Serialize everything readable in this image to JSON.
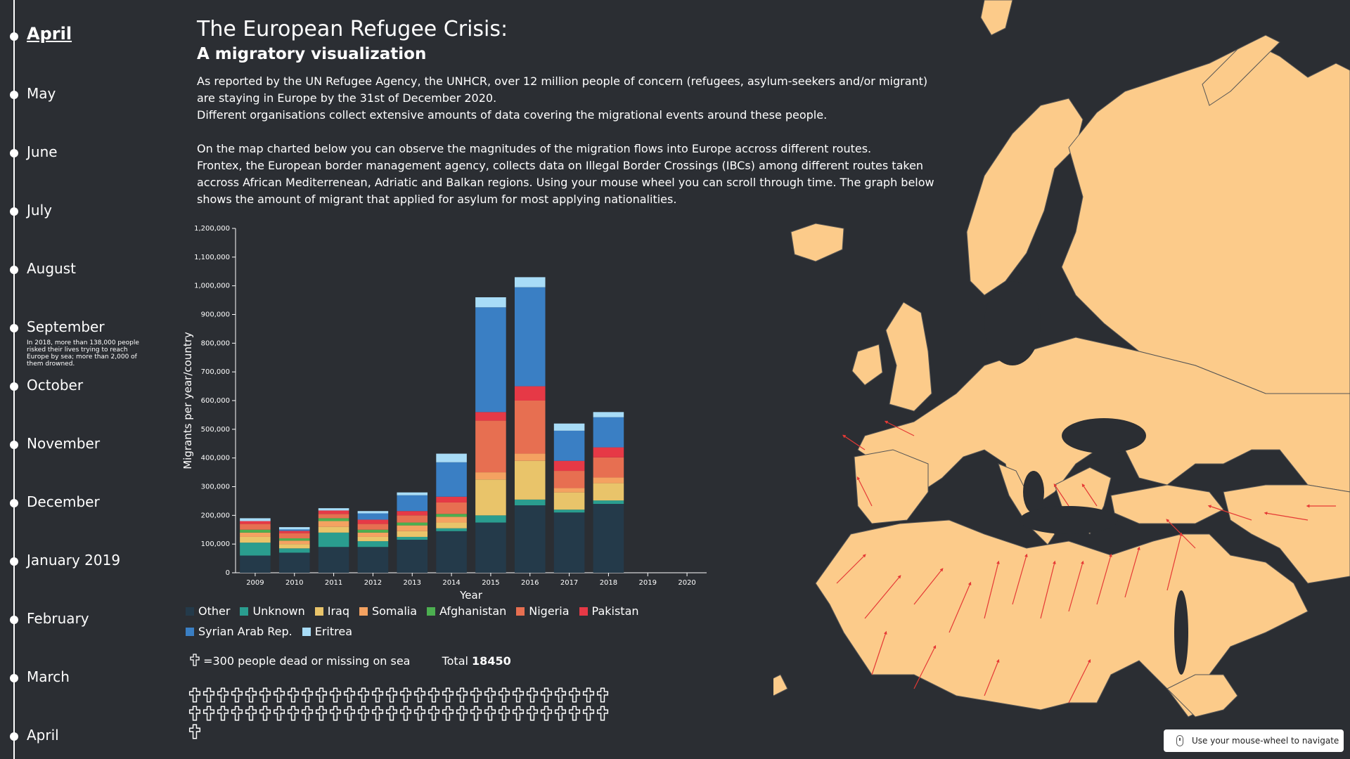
{
  "timeline": {
    "items": [
      {
        "label": "April",
        "active": true,
        "note": ""
      },
      {
        "label": "May",
        "active": false,
        "note": ""
      },
      {
        "label": "June",
        "active": false,
        "note": ""
      },
      {
        "label": "July",
        "active": false,
        "note": ""
      },
      {
        "label": "August",
        "active": false,
        "note": ""
      },
      {
        "label": "September",
        "active": false,
        "note": "In 2018, more than 138,000 people risked their lives trying to reach Europe by sea; more than 2,000 of them drowned."
      },
      {
        "label": "October",
        "active": false,
        "note": ""
      },
      {
        "label": "November",
        "active": false,
        "note": ""
      },
      {
        "label": "December",
        "active": false,
        "note": ""
      },
      {
        "label": "January 2019",
        "active": false,
        "note": ""
      },
      {
        "label": "February",
        "active": false,
        "note": ""
      },
      {
        "label": "March",
        "active": false,
        "note": ""
      },
      {
        "label": "April",
        "active": false,
        "note": ""
      }
    ]
  },
  "header": {
    "title": "The European Refugee Crisis:",
    "subtitle": "A migratory visualization",
    "p1": "As reported by the UN Refugee Agency, the UNHCR, over 12 million people of concern (refugees, asylum-seekers and/or migrant) are staying in Europe by the 31st of December 2020.",
    "p2": "Different organisations collect extensive amounts of data covering the migrational events around these people.",
    "p3": "On the map charted below you can observe the magnitudes of the migration flows into Europe accross different routes.",
    "p4": "Frontex, the European border management agency, collects data on Illegal Border Crossings (IBCs) among different routes taken accross African Mediterrenean, Adriatic and Balkan regions. Using your mouse wheel you can scroll through time. The graph below shows the amount of migrant that applied for asylum for most applying nationalities."
  },
  "chart_data": {
    "type": "bar",
    "stacked": true,
    "xlabel": "Year",
    "ylabel": "Migrants per year/country",
    "ylim": [
      0,
      1200000
    ],
    "yticks": [
      "0",
      "100,000",
      "200,000",
      "300,000",
      "400,000",
      "500,000",
      "600,000",
      "700,000",
      "800,000",
      "900,000",
      "1,000,000",
      "1,100,000",
      "1,200,000"
    ],
    "categories": [
      "2009",
      "2010",
      "2011",
      "2012",
      "2013",
      "2014",
      "2015",
      "2016",
      "2017",
      "2018",
      "2019",
      "2020"
    ],
    "series": [
      {
        "name": "Other",
        "color": "#243a4a",
        "values": [
          60000,
          70000,
          90000,
          90000,
          115000,
          145000,
          175000,
          235000,
          210000,
          240000,
          0,
          0
        ]
      },
      {
        "name": "Unknown",
        "color": "#2a9d8f",
        "values": [
          45000,
          15000,
          50000,
          20000,
          10000,
          10000,
          25000,
          20000,
          10000,
          12000,
          0,
          0
        ]
      },
      {
        "name": "Iraq",
        "color": "#e9c46a",
        "values": [
          20000,
          15000,
          20000,
          15000,
          20000,
          20000,
          125000,
          135000,
          60000,
          60000,
          0,
          0
        ]
      },
      {
        "name": "Somalia",
        "color": "#f4a261",
        "values": [
          15000,
          12000,
          20000,
          15000,
          20000,
          20000,
          25000,
          25000,
          15000,
          20000,
          0,
          0
        ]
      },
      {
        "name": "Afghanistan",
        "color": "#4caf50",
        "values": [
          10000,
          8000,
          10000,
          10000,
          10000,
          10000,
          0,
          0,
          0,
          0,
          0,
          0
        ]
      },
      {
        "name": "Nigeria",
        "color": "#e76f51",
        "values": [
          20000,
          18000,
          15000,
          20000,
          25000,
          40000,
          180000,
          185000,
          60000,
          70000,
          0,
          0
        ]
      },
      {
        "name": "Pakistan",
        "color": "#e63946",
        "values": [
          10000,
          8000,
          12000,
          15000,
          15000,
          20000,
          30000,
          50000,
          35000,
          35000,
          0,
          0
        ]
      },
      {
        "name": "Syrian Arab Rep.",
        "color": "#3a7fc4",
        "values": [
          0,
          5000,
          0,
          22000,
          55000,
          120000,
          365000,
          345000,
          105000,
          105000,
          0,
          0
        ]
      },
      {
        "name": "Eritrea",
        "color": "#a8dcf7",
        "values": [
          10000,
          8000,
          8000,
          8000,
          10000,
          30000,
          35000,
          35000,
          25000,
          18000,
          0,
          0
        ]
      }
    ]
  },
  "legend_colors": [
    "#243a4a",
    "#2a9d8f",
    "#e9c46a",
    "#f4a261",
    "#4caf50",
    "#e76f51",
    "#e63946",
    "#3a7fc4",
    "#a8dcf7"
  ],
  "dead": {
    "label": "=300 people dead or missing on sea",
    "total_label": "Total",
    "total_value": "18450",
    "crosses": 61,
    "icon": "cross-icon"
  },
  "map": {
    "land_color": "#fccb8a",
    "arrow_color": "#e53935"
  },
  "hint": {
    "text": "Use your mouse-wheel to navigate",
    "icon": "mouse-icon"
  }
}
